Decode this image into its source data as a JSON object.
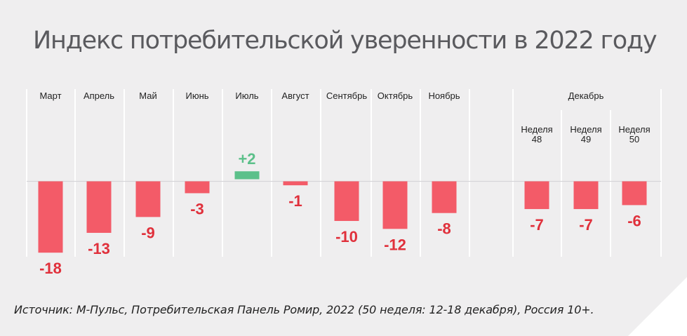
{
  "title": "Индекс потребительской уверенности в 2022 году",
  "source": "Источник: М-Пульс, Потребительская Панель Ромир, 2022 (50 неделя: 12-18 декабря), Россия 10+.",
  "colors": {
    "negative": "#f35b68",
    "positive": "#5cc08a",
    "label_negative": "#e0303b",
    "label_positive": "#5cc08a"
  },
  "chart_data": {
    "type": "bar",
    "title": "Индекс потребительской уверенности в 2022 году",
    "group_label": "Декабрь",
    "categories": [
      "Март",
      "Апрель",
      "Май",
      "Июнь",
      "Июль",
      "Август",
      "Сентябрь",
      "Октябрь",
      "Ноябрь",
      "Неделя 48",
      "Неделя 49",
      "Неделя 50"
    ],
    "values": [
      -18,
      -13,
      -9,
      -3,
      2,
      -1,
      -10,
      -12,
      -8,
      -7,
      -7,
      -6
    ],
    "value_labels": [
      "-18",
      "-13",
      "-9",
      "-3",
      "+2",
      "-1",
      "-10",
      "-12",
      "-8",
      "-7",
      "-7",
      "-6"
    ],
    "ylim": [
      -18,
      2
    ],
    "grid": "vertical separators",
    "legend": "none"
  }
}
